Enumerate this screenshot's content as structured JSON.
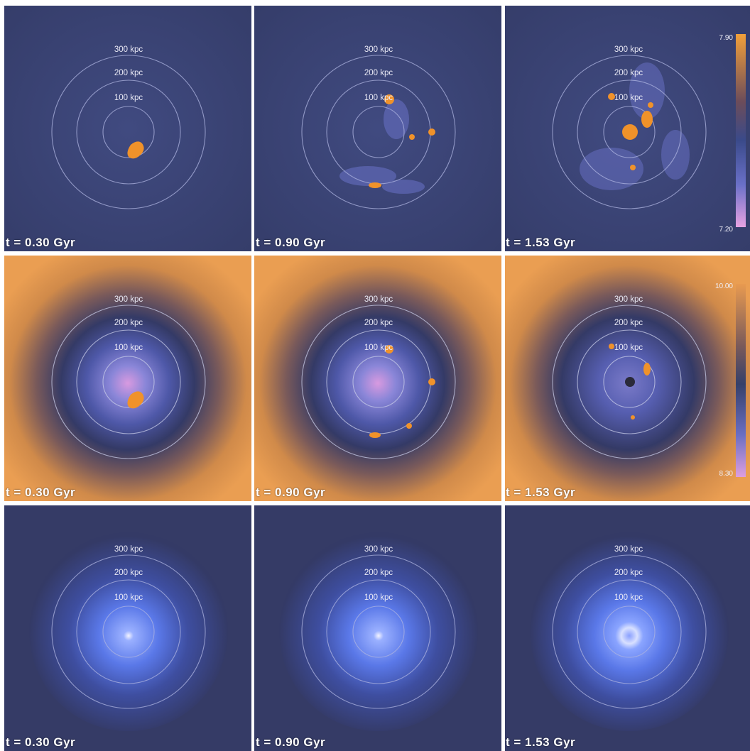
{
  "rows": [
    {
      "name": "row-1",
      "background": "#3a4272",
      "colorbar": {
        "max": "7.90",
        "min": "7.20",
        "colors": [
          "#f2a03a",
          "#6c4c5a",
          "#3a4a8a",
          "#6a70c8",
          "#e8a2e2"
        ]
      },
      "panels": [
        {
          "time": "t = 0.30 Gyr"
        },
        {
          "time": "t = 0.90 Gyr"
        },
        {
          "time": "t = 1.53 Gyr"
        }
      ]
    },
    {
      "name": "row-2",
      "background": "#e39a52",
      "colorbar": {
        "max": "10.00",
        "min": "8.30",
        "colors": [
          "#e89a50",
          "#7a5a5a",
          "#35406a",
          "#6a6ec2",
          "#dd9ee0"
        ]
      },
      "panels": [
        {
          "time": "t = 0.30 Gyr"
        },
        {
          "time": "t = 0.90 Gyr"
        },
        {
          "time": "t = 1.53 Gyr"
        }
      ]
    },
    {
      "name": "row-3",
      "background": "#363c66",
      "panels": [
        {
          "time": "t = 0.30 Gyr"
        },
        {
          "time": "t = 0.90 Gyr"
        },
        {
          "time": "t = 1.53 Gyr"
        }
      ]
    }
  ],
  "ring_labels": [
    "300 kpc",
    "200 kpc",
    "100 kpc"
  ],
  "colors": {
    "ring": "#c8cce8",
    "hot_gas": "#f0922a",
    "text": "#ffffff"
  }
}
